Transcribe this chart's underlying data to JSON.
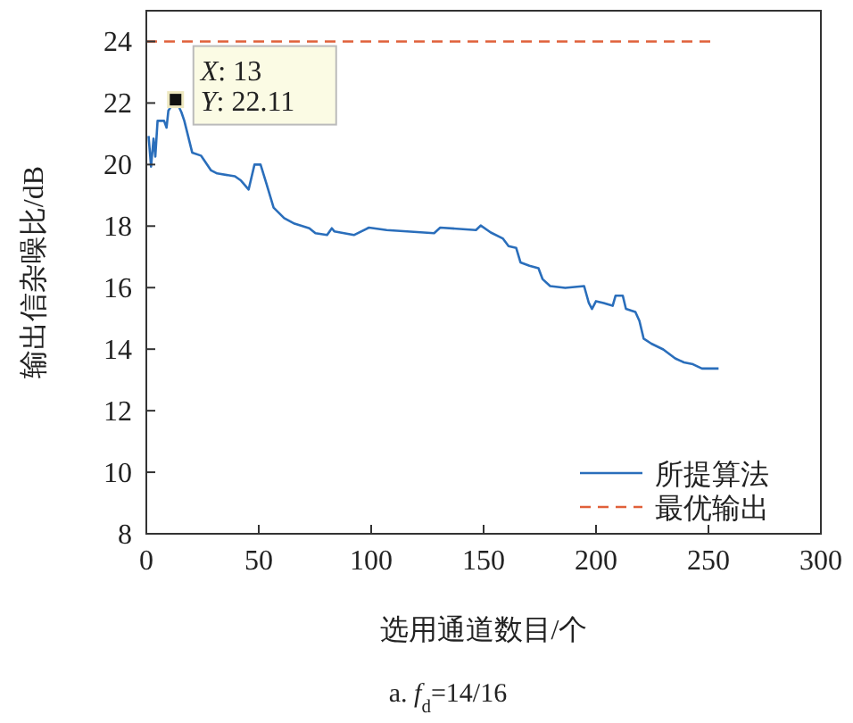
{
  "chart_data": {
    "type": "line",
    "xlabel": "选用通道数目/个",
    "ylabel": "输出信杂噪比/dB",
    "xlim": [
      0,
      300
    ],
    "ylim": [
      8,
      25
    ],
    "xticks": [
      0,
      50,
      100,
      150,
      200,
      250,
      300
    ],
    "yticks": [
      8,
      10,
      12,
      14,
      16,
      18,
      20,
      22,
      24
    ],
    "legend": "bottom right",
    "series": [
      {
        "name": "所提算法",
        "color": "#2a6ebb",
        "line_style": "solid",
        "x": [
          1,
          2.1,
          3.2,
          4,
          5,
          7.9,
          9,
          9.8,
          13,
          15.6,
          16.9,
          20.4,
          24.3,
          28.8,
          31.5,
          39.4,
          42.1,
          45.5,
          48.1,
          50.8,
          53.4,
          56.6,
          61.3,
          65.9,
          72.5,
          75.2,
          80.4,
          82.5,
          83.6,
          92.3,
          99,
          106.9,
          128,
          130.7,
          146.6,
          148.7,
          153.2,
          158.5,
          161.1,
          164.5,
          166.4,
          170.4,
          174.4,
          176.2,
          179.6,
          186.3,
          194.7,
          196.8,
          198.2,
          200,
          203.4,
          207.4,
          208.7,
          211.9,
          213.3,
          217.5,
          219.3,
          221.2,
          224.6,
          229.9,
          235.2,
          239.1,
          243.1,
          247.1,
          254.5
        ],
        "values": [
          20.93,
          19.93,
          20.84,
          20.26,
          21.42,
          21.42,
          21.2,
          21.75,
          22.11,
          21.7,
          21.42,
          20.39,
          20.29,
          19.81,
          19.71,
          19.62,
          19.48,
          19.19,
          20.0,
          20.0,
          19.38,
          18.6,
          18.26,
          18.08,
          17.93,
          17.77,
          17.71,
          17.93,
          17.83,
          17.71,
          17.95,
          17.87,
          17.77,
          17.95,
          17.87,
          18.02,
          17.79,
          17.6,
          17.35,
          17.29,
          16.82,
          16.71,
          16.63,
          16.28,
          16.05,
          15.99,
          16.05,
          15.5,
          15.31,
          15.56,
          15.5,
          15.41,
          15.74,
          15.74,
          15.31,
          15.21,
          14.92,
          14.34,
          14.18,
          13.99,
          13.7,
          13.57,
          13.51,
          13.37,
          13.37
        ]
      },
      {
        "name": "最优输出",
        "color": "#e0603a",
        "line_style": "dashed",
        "x": [
          0,
          252
        ],
        "values": [
          24,
          24
        ]
      }
    ],
    "annotations": [
      {
        "text": "*X*: 13",
        "x": 13,
        "y": 22.11
      },
      {
        "text": "*Y*: 22.11",
        "x": 13,
        "y": 22.11
      },
      "a. *f*$_{d}$=14/16"
    ]
  }
}
